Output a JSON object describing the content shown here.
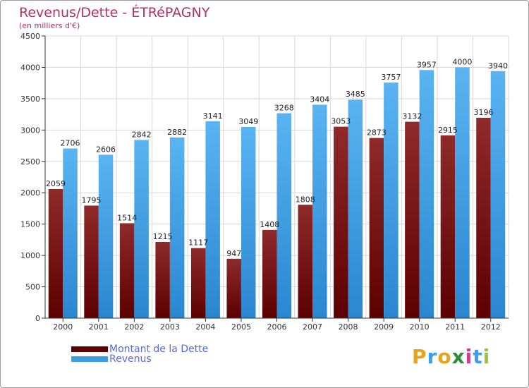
{
  "chart_data": {
    "type": "bar",
    "title": "Revenus/Dette - ÉTRéPAGNY",
    "subtitle": "(en milliers d'€)",
    "categories": [
      "2000",
      "2001",
      "2002",
      "2003",
      "2004",
      "2005",
      "2006",
      "2007",
      "2008",
      "2009",
      "2010",
      "2011",
      "2012"
    ],
    "series": [
      {
        "name": "Montant de la Dette",
        "color": "#8b1a1a",
        "values": [
          2059,
          1795,
          1514,
          1215,
          1117,
          947,
          1408,
          1808,
          3053,
          2873,
          3132,
          2915,
          3196
        ]
      },
      {
        "name": "Revenus",
        "color": "#3c9ee6",
        "values": [
          2706,
          2606,
          2842,
          2882,
          3141,
          3049,
          3268,
          3404,
          3485,
          3757,
          3957,
          4000,
          3940
        ]
      }
    ],
    "yticks": [
      0,
      500,
      1000,
      1500,
      2000,
      2500,
      3000,
      3500,
      4000,
      4500
    ],
    "ylim": [
      0,
      4500
    ],
    "grid": true,
    "legend_position": "bottom-left"
  },
  "legend": {
    "debt_label": "Montant de la Dette",
    "revenue_label": "Revenus"
  },
  "logo": {
    "letters": [
      "P",
      "r",
      "o",
      "x",
      "i",
      "t",
      "i"
    ],
    "colors": [
      "#e8a21c",
      "#3c9ee6",
      "#e8a21c",
      "#2f8c3a",
      "#d23c8c",
      "#3c9ee6",
      "#9bc43c"
    ]
  }
}
